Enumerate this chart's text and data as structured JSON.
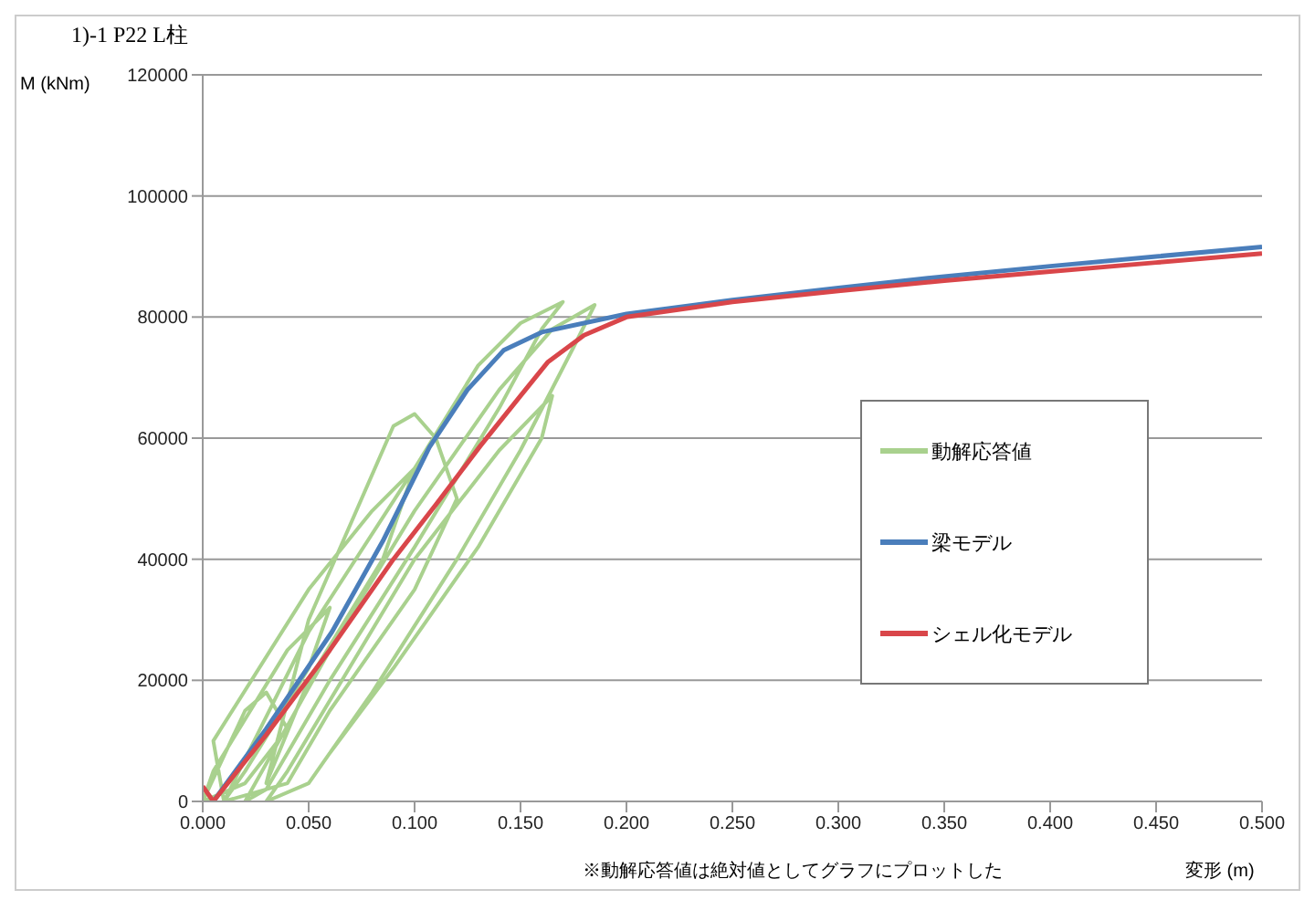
{
  "chart_data": {
    "type": "line",
    "title": "1)-1  P22 L柱",
    "xlabel": "変形 (m)",
    "ylabel": "M (kNm)",
    "annotations": [
      "※動解応答値は絶対値としてグラフにプロットした"
    ],
    "xlim": [
      0,
      0.5
    ],
    "ylim": [
      0,
      120000
    ],
    "xticks": [
      {
        "value": 0,
        "label": "0.000"
      },
      {
        "value": 0.05,
        "label": "0.050"
      },
      {
        "value": 0.1,
        "label": "0.100"
      },
      {
        "value": 0.15,
        "label": "0.150"
      },
      {
        "value": 0.2,
        "label": "0.200"
      },
      {
        "value": 0.25,
        "label": "0.250"
      },
      {
        "value": 0.3,
        "label": "0.300"
      },
      {
        "value": 0.35,
        "label": "0.350"
      },
      {
        "value": 0.4,
        "label": "0.400"
      },
      {
        "value": 0.45,
        "label": "0.450"
      },
      {
        "value": 0.5,
        "label": "0.500"
      }
    ],
    "yticks": [
      0,
      20000,
      40000,
      60000,
      80000,
      100000,
      120000
    ],
    "grid": "y",
    "legend": "right",
    "series": [
      {
        "name": "動解応答値",
        "color": "#a9d18e",
        "x": [
          0,
          0.02,
          0.03,
          0.04,
          0.02,
          0,
          0.005,
          0.04,
          0.06,
          0.05,
          0.02,
          0.01,
          0.005,
          0.05,
          0.08,
          0.1,
          0.085,
          0.05,
          0.03,
          0.05,
          0.09,
          0.1,
          0.11,
          0.12,
          0.1,
          0.06,
          0.04,
          0.01,
          0.05,
          0.1,
          0.13,
          0.15,
          0.17,
          0.16,
          0.14,
          0.1,
          0.06,
          0.03,
          0.02,
          0.06,
          0.1,
          0.14,
          0.165,
          0.185,
          0.175,
          0.15,
          0.12,
          0.08,
          0.05,
          0.03,
          0.04,
          0.1,
          0.14,
          0.165,
          0.16,
          0.13,
          0.09,
          0.06
        ],
        "values": [
          0,
          15000,
          18000,
          12000,
          3000,
          0,
          5000,
          25000,
          32000,
          22000,
          5000,
          0,
          10000,
          35000,
          48000,
          55000,
          40000,
          20000,
          3000,
          30000,
          62000,
          64000,
          60000,
          50000,
          35000,
          15000,
          3000,
          0,
          28000,
          55000,
          72000,
          79000,
          82500,
          78000,
          65000,
          42000,
          20000,
          2000,
          0,
          25000,
          48000,
          68000,
          78000,
          82000,
          75000,
          58000,
          40000,
          18000,
          3000,
          0,
          5000,
          40000,
          58000,
          67000,
          60000,
          42000,
          22000,
          8000
        ]
      },
      {
        "name": "梁モデル",
        "color": "#4a7ebb",
        "x": [
          0.005,
          0.03,
          0.061,
          0.085,
          0.107,
          0.125,
          0.142,
          0.16,
          0.2,
          0.25,
          0.3,
          0.35,
          0.4,
          0.45,
          0.5
        ],
        "values": [
          0,
          12000,
          28000,
          43000,
          58500,
          68000,
          74500,
          77500,
          80500,
          82800,
          84800,
          86700,
          88400,
          90000,
          91600
        ]
      },
      {
        "name": "シェル化モデル",
        "color": "#d9464a",
        "x": [
          0,
          0.005,
          0.03,
          0.06,
          0.09,
          0.11,
          0.131,
          0.15,
          0.163,
          0.18,
          0.2,
          0.25,
          0.3,
          0.35,
          0.4,
          0.45,
          0.5
        ],
        "values": [
          2500,
          0,
          11000,
          25000,
          40000,
          49000,
          58700,
          67000,
          72600,
          77000,
          80000,
          82500,
          84300,
          86000,
          87500,
          89000,
          90500
        ]
      }
    ]
  }
}
